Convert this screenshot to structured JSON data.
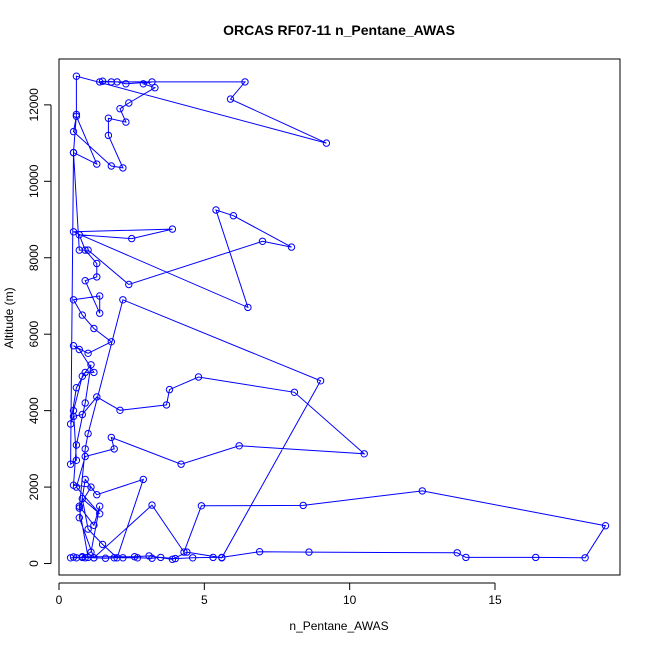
{
  "chart_data": {
    "type": "line",
    "title": "ORCAS RF07-11 n_Pentane_AWAS",
    "xlabel": "n_Pentane_AWAS",
    "ylabel": "Altitude (m)",
    "xlim": [
      0,
      19.3
    ],
    "ylim": [
      -300,
      13200
    ],
    "xticks": [
      0,
      5,
      10,
      15
    ],
    "yticks": [
      0,
      2000,
      4000,
      6000,
      8000,
      10000,
      12000
    ],
    "grid": false,
    "legend": "none",
    "series": [
      {
        "color": "#0000ff",
        "marker": "open-circle",
        "points": [
          [
            0.4,
            150
          ],
          [
            0.6,
            150
          ],
          [
            0.9,
            150
          ],
          [
            1.2,
            150
          ],
          [
            0.5,
            170
          ],
          [
            0.8,
            160
          ],
          [
            1.6,
            140
          ],
          [
            1.9,
            150
          ],
          [
            2.2,
            150
          ],
          [
            2.7,
            150
          ],
          [
            3.2,
            140
          ],
          [
            3.5,
            160
          ],
          [
            4.0,
            130
          ],
          [
            4.6,
            150
          ],
          [
            5.3,
            160
          ],
          [
            5.6,
            160
          ],
          [
            6.9,
            310
          ],
          [
            8.6,
            300
          ],
          [
            13.7,
            280
          ],
          [
            14.0,
            160
          ],
          [
            16.4,
            160
          ],
          [
            18.1,
            150
          ],
          [
            18.8,
            990
          ],
          [
            12.5,
            1900
          ],
          [
            8.4,
            1520
          ],
          [
            4.9,
            1510
          ],
          [
            4.3,
            300
          ],
          [
            3.2,
            1530
          ],
          [
            1.2,
            150
          ],
          [
            0.7,
            1200
          ],
          [
            0.9,
            2200
          ],
          [
            1.3,
            1800
          ],
          [
            2.9,
            2200
          ],
          [
            2.0,
            150
          ],
          [
            1.5,
            500
          ],
          [
            1.0,
            900
          ],
          [
            0.8,
            1700
          ],
          [
            1.4,
            1300
          ],
          [
            0.6,
            2000
          ],
          [
            0.9,
            2800
          ],
          [
            1.9,
            3000
          ],
          [
            1.8,
            3300
          ],
          [
            4.2,
            2600
          ],
          [
            6.2,
            3080
          ],
          [
            10.5,
            2870
          ],
          [
            8.1,
            4480
          ],
          [
            4.8,
            4880
          ],
          [
            3.8,
            4550
          ],
          [
            3.7,
            4150
          ],
          [
            2.1,
            4010
          ],
          [
            1.3,
            4360
          ],
          [
            0.8,
            3900
          ],
          [
            0.5,
            3850
          ],
          [
            0.4,
            3650
          ],
          [
            0.6,
            4600
          ],
          [
            0.9,
            5000
          ],
          [
            1.2,
            5000
          ],
          [
            0.7,
            5600
          ],
          [
            0.5,
            5700
          ],
          [
            1.0,
            5500
          ],
          [
            1.8,
            5800
          ],
          [
            1.2,
            6150
          ],
          [
            0.8,
            6500
          ],
          [
            0.5,
            6900
          ],
          [
            1.4,
            7000
          ],
          [
            1.4,
            6550
          ],
          [
            0.9,
            7400
          ],
          [
            1.3,
            7500
          ],
          [
            1.3,
            7850
          ],
          [
            0.9,
            8200
          ],
          [
            0.7,
            8600
          ],
          [
            2.5,
            8500
          ],
          [
            3.9,
            8750
          ],
          [
            0.5,
            8680
          ],
          [
            6.5,
            6700
          ],
          [
            5.4,
            9250
          ],
          [
            6.0,
            9100
          ],
          [
            8.0,
            8280
          ],
          [
            7.0,
            8430
          ],
          [
            2.4,
            7300
          ],
          [
            1.0,
            8200
          ],
          [
            0.7,
            8200
          ],
          [
            0.5,
            10750
          ],
          [
            1.3,
            10450
          ],
          [
            0.6,
            11700
          ],
          [
            0.5,
            11300
          ],
          [
            1.8,
            10400
          ],
          [
            2.2,
            10350
          ],
          [
            1.7,
            11200
          ],
          [
            1.7,
            11650
          ],
          [
            2.3,
            11550
          ],
          [
            2.1,
            11900
          ],
          [
            2.4,
            12050
          ],
          [
            3.3,
            12450
          ],
          [
            2.9,
            12550
          ],
          [
            3.2,
            12600
          ],
          [
            2.3,
            12550
          ],
          [
            2.0,
            12600
          ],
          [
            1.5,
            12620
          ],
          [
            1.4,
            12600
          ],
          [
            1.8,
            12600
          ],
          [
            6.4,
            12600
          ],
          [
            5.9,
            12150
          ],
          [
            9.2,
            11000
          ],
          [
            0.6,
            12750
          ],
          [
            0.6,
            11750
          ],
          [
            0.5,
            10750
          ],
          [
            0.4,
            2600
          ],
          [
            0.6,
            2700
          ],
          [
            0.5,
            4000
          ],
          [
            0.8,
            4900
          ],
          [
            1.1,
            5200
          ],
          [
            0.9,
            4200
          ],
          [
            0.6,
            3100
          ],
          [
            0.5,
            2050
          ],
          [
            1.1,
            2000
          ],
          [
            0.7,
            1500
          ],
          [
            1.2,
            1000
          ],
          [
            1.4,
            1500
          ],
          [
            1.1,
            300
          ],
          [
            0.8,
            180
          ],
          [
            2.6,
            180
          ],
          [
            3.1,
            200
          ],
          [
            3.9,
            110
          ],
          [
            4.4,
            300
          ],
          [
            5.6,
            150
          ],
          [
            9.0,
            4780
          ],
          [
            2.2,
            6900
          ],
          [
            1.0,
            3400
          ],
          [
            0.9,
            3000
          ],
          [
            0.7,
            1450
          ],
          [
            1.0,
            160
          ]
        ]
      }
    ]
  }
}
